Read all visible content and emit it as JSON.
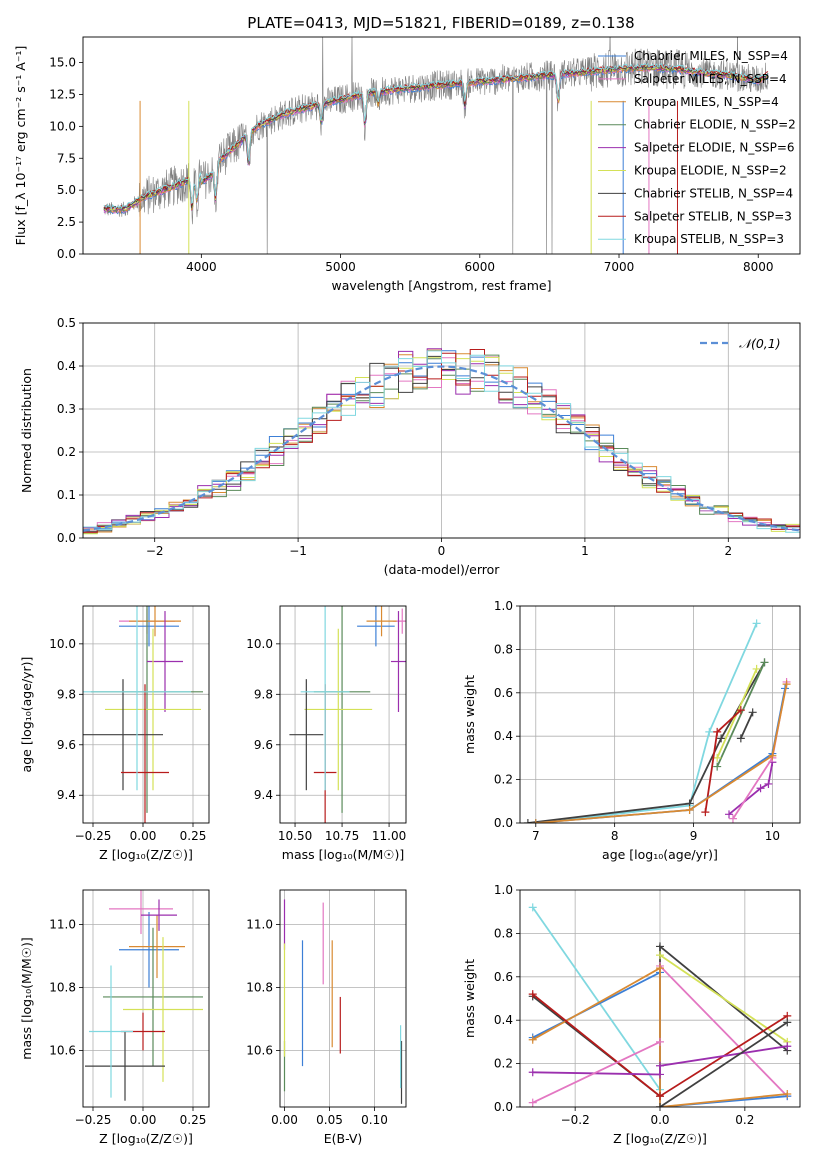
{
  "figure": {
    "title": "PLATE=0413, MJD=51821, FIBERID=0189, z=0.138"
  },
  "chart_data": [
    {
      "id": "spectrum",
      "type": "line",
      "title": "PLATE=0413, MJD=51821, FIBERID=0189, z=0.138",
      "xlabel": "wavelength [Angstrom, rest frame]",
      "ylabel": "Flux [f_λ 10⁻¹⁷ erg cm⁻² s⁻¹ A⁻¹]",
      "xlim": [
        3150,
        8300
      ],
      "ylim": [
        0,
        17
      ],
      "xticks": [
        4000,
        5000,
        6000,
        7000,
        8000
      ],
      "yticks": [
        0.0,
        2.5,
        5.0,
        7.5,
        10.0,
        12.5,
        15.0
      ],
      "grid": false,
      "legend": "upper-right",
      "observed_color": "#808080",
      "continuum": {
        "x": [
          3300,
          3450,
          3600,
          3800,
          4000,
          4200,
          4400,
          4600,
          4800,
          5000,
          5200,
          5400,
          5600,
          5800,
          6000,
          6200,
          6400,
          6600,
          6800,
          7000,
          7200,
          7400,
          7600,
          7800,
          8000,
          8070
        ],
        "y": [
          3.5,
          3.5,
          4.5,
          5.3,
          6.2,
          8.0,
          10.0,
          11.0,
          11.6,
          12.1,
          12.6,
          12.9,
          13.1,
          13.3,
          13.5,
          13.7,
          13.9,
          14.1,
          14.3,
          14.5,
          14.6,
          14.5,
          14.2,
          14.0,
          13.6,
          14.0
        ]
      },
      "series": [
        {
          "name": "Chabrier MILES, N_SSP=4",
          "color": "#3c7fd6"
        },
        {
          "name": "Salpeter MILES, N_SSP=4",
          "color": "#e377c2"
        },
        {
          "name": "Kroupa MILES, N_SSP=4",
          "color": "#d98a32"
        },
        {
          "name": "Chabrier ELODIE, N_SSP=2",
          "color": "#5a8a5a"
        },
        {
          "name": "Salpeter ELODIE, N_SSP=6",
          "color": "#9b2fae"
        },
        {
          "name": "Kroupa ELODIE, N_SSP=2",
          "color": "#d4e157"
        },
        {
          "name": "Chabrier STELIB, N_SSP=4",
          "color": "#404040"
        },
        {
          "name": "Salpeter STELIB, N_SSP=3",
          "color": "#b71c1c"
        },
        {
          "name": "Kroupa STELIB, N_SSP=3",
          "color": "#80d8e0"
        }
      ]
    },
    {
      "id": "residuals",
      "type": "line",
      "xlabel": "(data-model)/error",
      "ylabel": "Normed distribution",
      "xlim": [
        -2.5,
        2.5
      ],
      "ylim": [
        0,
        0.5
      ],
      "xticks": [
        -2,
        -1,
        0,
        1,
        2
      ],
      "yticks": [
        0.0,
        0.1,
        0.2,
        0.3,
        0.4,
        0.5
      ],
      "grid": true,
      "legend": "upper-right",
      "gaussian": {
        "name": "𝒩(0,1)",
        "color": "#5b8fd6"
      },
      "bin_width": 0.1,
      "bin_start": -2.5
    },
    {
      "id": "age_vs_Z",
      "type": "scatter",
      "xlabel": "Z [log₁₀(Z/Z☉)]",
      "ylabel": "age  [log₁₀(age/yr)]",
      "xlim": [
        -0.3,
        0.33
      ],
      "ylim": [
        9.29,
        10.15
      ],
      "xticks": [
        -0.25,
        0.0,
        0.25
      ],
      "yticks": [
        9.4,
        9.6,
        9.8,
        10.0
      ],
      "grid": true,
      "points": [
        {
          "series": "Chabrier MILES",
          "x": 0.03,
          "xerr": 0.15,
          "y": 10.07,
          "yerr": 0.08
        },
        {
          "series": "Salpeter MILES",
          "x": 0.02,
          "xerr": 0.14,
          "y": 10.09,
          "yerr": 0.05
        },
        {
          "series": "Kroupa MILES",
          "x": 0.06,
          "xerr": 0.13,
          "y": 10.09,
          "yerr": 0.06
        },
        {
          "series": "Chabrier ELODIE",
          "x": 0.02,
          "xerr": 0.28,
          "y": 9.81,
          "yerr": 0.48
        },
        {
          "series": "Salpeter ELODIE",
          "x": 0.11,
          "xerr": 0.09,
          "y": 9.93,
          "yerr": 0.2
        },
        {
          "series": "Kroupa ELODIE",
          "x": 0.05,
          "xerr": 0.24,
          "y": 9.74,
          "yerr": 0.32
        },
        {
          "series": "Chabrier STELIB",
          "x": -0.1,
          "xerr": 0.2,
          "y": 9.64,
          "yerr": 0.22
        },
        {
          "series": "Salpeter STELIB",
          "x": 0.01,
          "xerr": 0.12,
          "y": 9.49,
          "yerr": 0.35
        },
        {
          "series": "Kroupa STELIB",
          "x": -0.03,
          "xerr": 0.27,
          "y": 9.81,
          "yerr": 0.39
        }
      ]
    },
    {
      "id": "age_vs_mass",
      "type": "scatter",
      "xlabel": "mass [log₁₀(M/M☉)]",
      "ylabel": "",
      "xlim": [
        10.42,
        11.09
      ],
      "ylim": [
        9.29,
        10.15
      ],
      "xticks": [
        10.5,
        10.75,
        11.0
      ],
      "yticks": [
        9.4,
        9.6,
        9.8,
        10.0
      ],
      "grid": true,
      "points": [
        {
          "series": "Chabrier MILES",
          "x": 10.93,
          "xerr": 0.1,
          "y": 10.07,
          "yerr": 0.08
        },
        {
          "series": "Salpeter MILES",
          "x": 11.07,
          "xerr": 0.05,
          "y": 10.09,
          "yerr": 0.05
        },
        {
          "series": "Kroupa MILES",
          "x": 10.96,
          "xerr": 0.08,
          "y": 10.09,
          "yerr": 0.06
        },
        {
          "series": "Chabrier ELODIE",
          "x": 10.75,
          "xerr": 0.15,
          "y": 9.81,
          "yerr": 0.48
        },
        {
          "series": "Salpeter ELODIE",
          "x": 11.05,
          "xerr": 0.04,
          "y": 9.93,
          "yerr": 0.2
        },
        {
          "series": "Kroupa ELODIE",
          "x": 10.73,
          "xerr": 0.18,
          "y": 9.74,
          "yerr": 0.32
        },
        {
          "series": "Chabrier STELIB",
          "x": 10.56,
          "xerr": 0.09,
          "y": 9.64,
          "yerr": 0.22
        },
        {
          "series": "Salpeter STELIB",
          "x": 10.66,
          "xerr": 0.06,
          "y": 9.49,
          "yerr": 0.35
        },
        {
          "series": "Kroupa STELIB",
          "x": 10.66,
          "xerr": 0.13,
          "y": 9.81,
          "yerr": 0.39
        }
      ]
    },
    {
      "id": "massweight_vs_age",
      "type": "line",
      "xlabel": "age  [log₁₀(age/yr)]",
      "ylabel": "mass weight",
      "xlim": [
        6.8,
        10.35
      ],
      "ylim": [
        0,
        1.0
      ],
      "xticks": [
        7,
        8,
        9,
        10
      ],
      "yticks": [
        0.0,
        0.2,
        0.4,
        0.6,
        0.8,
        1.0
      ],
      "grid": true,
      "series": [
        {
          "name": "Kroupa STELIB",
          "x": [
            7.0,
            8.95,
            9.2,
            9.8
          ],
          "y": [
            0.0,
            0.08,
            0.42,
            0.92
          ]
        },
        {
          "name": "Chabrier STELIB",
          "x": [
            6.9,
            8.95,
            9.35,
            9.9
          ],
          "y": [
            0.0,
            0.09,
            0.39,
            0.74
          ]
        },
        {
          "name": "Chabrier ELODIE",
          "x": [
            9.3,
            9.9
          ],
          "y": [
            0.26,
            0.74
          ]
        },
        {
          "name": "Kroupa ELODIE",
          "x": [
            9.3,
            9.8
          ],
          "y": [
            0.3,
            0.71
          ]
        },
        {
          "name": "Salpeter STELIB",
          "x": [
            9.15,
            9.3,
            9.6
          ],
          "y": [
            0.05,
            0.42,
            0.52
          ]
        },
        {
          "name": "Chabrier STELIB",
          "x": [
            9.6,
            9.75
          ],
          "y": [
            0.39,
            0.51
          ]
        },
        {
          "name": "Salpeter ELODIE",
          "x": [
            9.45,
            9.85,
            9.95,
            10.0
          ],
          "y": [
            0.04,
            0.16,
            0.18,
            0.28
          ]
        },
        {
          "name": "Salpeter MILES",
          "x": [
            9.5,
            10.0,
            10.18
          ],
          "y": [
            0.02,
            0.3,
            0.65
          ]
        },
        {
          "name": "Chabrier MILES",
          "x": [
            7.0,
            8.95,
            10.0,
            10.16
          ],
          "y": [
            0.0,
            0.06,
            0.32,
            0.62
          ]
        },
        {
          "name": "Kroupa MILES",
          "x": [
            7.0,
            8.95,
            10.0,
            10.18
          ],
          "y": [
            0.0,
            0.06,
            0.31,
            0.64
          ]
        }
      ]
    },
    {
      "id": "mass_vs_Z",
      "type": "scatter",
      "xlabel": "Z [log₁₀(Z/Z☉)]",
      "ylabel": "mass [log₁₀(M/M☉)]",
      "xlim": [
        -0.3,
        0.33
      ],
      "ylim": [
        10.42,
        11.11
      ],
      "xticks": [
        -0.25,
        0.0,
        0.25
      ],
      "yticks": [
        10.6,
        10.8,
        11.0
      ],
      "grid": true,
      "points": [
        {
          "series": "Chabrier MILES",
          "x": 0.03,
          "xerr": 0.15,
          "y": 10.92,
          "yerr": 0.12
        },
        {
          "series": "Salpeter MILES",
          "x": -0.01,
          "xerr": 0.16,
          "y": 11.05,
          "yerr": 0.08
        },
        {
          "series": "Kroupa MILES",
          "x": 0.07,
          "xerr": 0.14,
          "y": 10.93,
          "yerr": 0.1
        },
        {
          "series": "Chabrier ELODIE",
          "x": 0.05,
          "xerr": 0.25,
          "y": 10.77,
          "yerr": 0.22
        },
        {
          "series": "Salpeter ELODIE",
          "x": 0.08,
          "xerr": 0.09,
          "y": 11.03,
          "yerr": 0.05
        },
        {
          "series": "Kroupa ELODIE",
          "x": 0.1,
          "xerr": 0.2,
          "y": 10.73,
          "yerr": 0.23
        },
        {
          "series": "Chabrier STELIB",
          "x": -0.09,
          "xerr": 0.2,
          "y": 10.55,
          "yerr": 0.11
        },
        {
          "series": "Salpeter STELIB",
          "x": 0.0,
          "xerr": 0.11,
          "y": 10.66,
          "yerr": 0.06
        },
        {
          "series": "Kroupa STELIB",
          "x": -0.16,
          "xerr": 0.11,
          "y": 10.66,
          "yerr": 0.21
        }
      ]
    },
    {
      "id": "mass_vs_ebv",
      "type": "scatter",
      "xlabel": "E(B-V)",
      "ylabel": "",
      "xlim": [
        -0.005,
        0.135
      ],
      "ylim": [
        10.42,
        11.11
      ],
      "xticks": [
        0.0,
        0.05,
        0.1
      ],
      "yticks": [
        10.6,
        10.8,
        11.0
      ],
      "grid": true,
      "points": [
        {
          "series": "Chabrier MILES",
          "x": 0.02,
          "xerr": 0,
          "y": 10.75,
          "yerr": 0.2
        },
        {
          "series": "Salpeter MILES",
          "x": 0.043,
          "xerr": 0,
          "y": 10.94,
          "yerr": 0.13
        },
        {
          "series": "Kroupa MILES",
          "x": 0.053,
          "xerr": 0,
          "y": 10.78,
          "yerr": 0.17
        },
        {
          "series": "Chabrier ELODIE",
          "x": 0.0,
          "xerr": 0,
          "y": 10.55,
          "yerr": 0.08
        },
        {
          "series": "Salpeter ELODIE",
          "x": 0.0,
          "xerr": 0,
          "y": 11.0,
          "yerr": 0.08
        },
        {
          "series": "Kroupa ELODIE",
          "x": 0.0,
          "xerr": 0,
          "y": 10.76,
          "yerr": 0.18
        },
        {
          "series": "Chabrier STELIB",
          "x": 0.13,
          "xerr": 0,
          "y": 10.53,
          "yerr": 0.1
        },
        {
          "series": "Salpeter STELIB",
          "x": 0.062,
          "xerr": 0,
          "y": 10.68,
          "yerr": 0.09
        },
        {
          "series": "Kroupa STELIB",
          "x": 0.129,
          "xerr": 0,
          "y": 10.58,
          "yerr": 0.1
        }
      ]
    },
    {
      "id": "massweight_vs_Z",
      "type": "line",
      "xlabel": "Z [log₁₀(Z/Z☉)]",
      "ylabel": "mass weight",
      "xlim": [
        -0.33,
        0.33
      ],
      "ylim": [
        0,
        1.0
      ],
      "xticks": [
        -0.2,
        0.0,
        0.2
      ],
      "yticks": [
        0.0,
        0.2,
        0.4,
        0.6,
        0.8,
        1.0
      ],
      "grid": true,
      "series": [
        {
          "name": "Kroupa STELIB",
          "x": [
            -0.3,
            0.0
          ],
          "y": [
            0.92,
            0.08
          ]
        },
        {
          "name": "Chabrier STELIB",
          "x": [
            -0.3,
            0.0,
            0.0,
            0.3
          ],
          "y": [
            0.51,
            0.05,
            0.74,
            0.26
          ]
        },
        {
          "name": "Kroupa ELODIE",
          "x": [
            0.0,
            0.3
          ],
          "y": [
            0.7,
            0.3
          ]
        },
        {
          "name": "Salpeter MILES",
          "x": [
            0.0,
            0.3
          ],
          "y": [
            0.65,
            0.05
          ]
        },
        {
          "name": "Chabrier MILES",
          "x": [
            -0.3,
            0.0,
            0.0,
            0.3
          ],
          "y": [
            0.32,
            0.62,
            0.0,
            0.05
          ]
        },
        {
          "name": "Kroupa MILES",
          "x": [
            -0.3,
            0.0,
            0.0,
            0.3
          ],
          "y": [
            0.31,
            0.64,
            0.0,
            0.06
          ]
        },
        {
          "name": "Salpeter STELIB",
          "x": [
            -0.3,
            0.0,
            0.3
          ],
          "y": [
            0.52,
            0.05,
            0.42
          ]
        },
        {
          "name": "Salpeter ELODIE",
          "x": [
            -0.3,
            0.0,
            0.0,
            0.3
          ],
          "y": [
            0.16,
            0.15,
            0.19,
            0.28
          ]
        },
        {
          "name": "Chabrier STELIB",
          "x": [
            0.0,
            0.3
          ],
          "y": [
            0.0,
            0.39
          ]
        },
        {
          "name": "Salpeter MILES",
          "x": [
            -0.3,
            0.0
          ],
          "y": [
            0.02,
            0.3
          ]
        }
      ]
    }
  ]
}
